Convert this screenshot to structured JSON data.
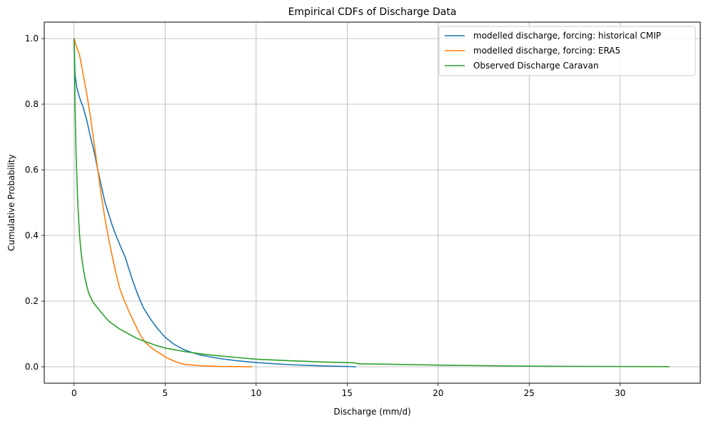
{
  "chart_data": {
    "type": "line",
    "title": "Empirical CDFs of Discharge Data",
    "xlabel": "Discharge (mm/d)",
    "ylabel": "Cumulative Probability",
    "xlim": [
      -1.64,
      34.4
    ],
    "ylim": [
      -0.05,
      1.05
    ],
    "grid": true,
    "legend_position": "top-right",
    "x_ticks": [
      0,
      5,
      10,
      15,
      20,
      25,
      30
    ],
    "x_tick_labels": [
      "0",
      "5",
      "10",
      "15",
      "20",
      "25",
      "30"
    ],
    "y_ticks": [
      0.0,
      0.2,
      0.4,
      0.6,
      0.8,
      1.0
    ],
    "y_tick_labels": [
      "0.0",
      "0.2",
      "0.4",
      "0.6",
      "0.8",
      "1.0"
    ],
    "series": [
      {
        "name": "modelled discharge, forcing: historical CMIP",
        "color": "#1f77b4",
        "x": [
          0,
          0.05,
          0.15,
          0.3,
          0.5,
          0.7,
          0.9,
          1.1,
          1.3,
          1.5,
          1.7,
          1.9,
          2.1,
          2.3,
          2.6,
          2.8,
          3.0,
          3.2,
          3.5,
          3.8,
          4.2,
          4.6,
          5.0,
          5.5,
          6.0,
          6.5,
          7.0,
          8.0,
          9.0,
          10.0,
          11.0,
          12.0,
          13.0,
          14.0,
          15.0,
          15.5
        ],
        "y": [
          1.0,
          0.89,
          0.85,
          0.82,
          0.79,
          0.75,
          0.7,
          0.655,
          0.6,
          0.55,
          0.5,
          0.465,
          0.43,
          0.4,
          0.36,
          0.335,
          0.3,
          0.265,
          0.22,
          0.18,
          0.145,
          0.115,
          0.09,
          0.068,
          0.053,
          0.043,
          0.035,
          0.025,
          0.018,
          0.013,
          0.009,
          0.006,
          0.004,
          0.002,
          0.001,
          0.0
        ]
      },
      {
        "name": "modelled discharge, forcing: ERA5",
        "color": "#ff7f0e",
        "x": [
          0,
          0.1,
          0.3,
          0.5,
          0.7,
          0.9,
          1.1,
          1.3,
          1.5,
          1.7,
          1.9,
          2.1,
          2.3,
          2.5,
          2.7,
          3.0,
          3.3,
          3.6,
          3.9,
          4.2,
          4.5,
          4.8,
          5.0,
          5.3,
          5.6,
          6.0,
          6.5,
          7.0,
          7.5,
          8.0,
          9.0,
          9.8
        ],
        "y": [
          1.0,
          0.98,
          0.95,
          0.89,
          0.83,
          0.76,
          0.68,
          0.6,
          0.52,
          0.45,
          0.39,
          0.335,
          0.285,
          0.24,
          0.21,
          0.17,
          0.135,
          0.1,
          0.075,
          0.06,
          0.048,
          0.038,
          0.03,
          0.022,
          0.015,
          0.008,
          0.005,
          0.003,
          0.002,
          0.001,
          0.0005,
          0.0
        ]
      },
      {
        "name": "Observed Discharge Caravan",
        "color": "#2ca02c",
        "x": [
          0,
          0.02,
          0.05,
          0.1,
          0.15,
          0.2,
          0.3,
          0.4,
          0.5,
          0.6,
          0.7,
          0.8,
          1.0,
          1.2,
          1.5,
          1.8,
          2.0,
          2.5,
          3.0,
          3.5,
          4.0,
          4.5,
          5.0,
          6.0,
          7.0,
          8.0,
          9.0,
          10.0,
          12.0,
          14.0,
          15.4,
          15.6,
          17.0,
          20.0,
          23.0,
          26.0,
          30.0,
          32.7
        ],
        "y": [
          1.0,
          0.92,
          0.8,
          0.66,
          0.58,
          0.5,
          0.4,
          0.34,
          0.3,
          0.27,
          0.245,
          0.225,
          0.2,
          0.185,
          0.165,
          0.145,
          0.135,
          0.115,
          0.1,
          0.085,
          0.075,
          0.065,
          0.057,
          0.047,
          0.039,
          0.033,
          0.028,
          0.023,
          0.018,
          0.014,
          0.012,
          0.009,
          0.008,
          0.005,
          0.003,
          0.0015,
          0.0008,
          0.0005
        ]
      }
    ]
  }
}
